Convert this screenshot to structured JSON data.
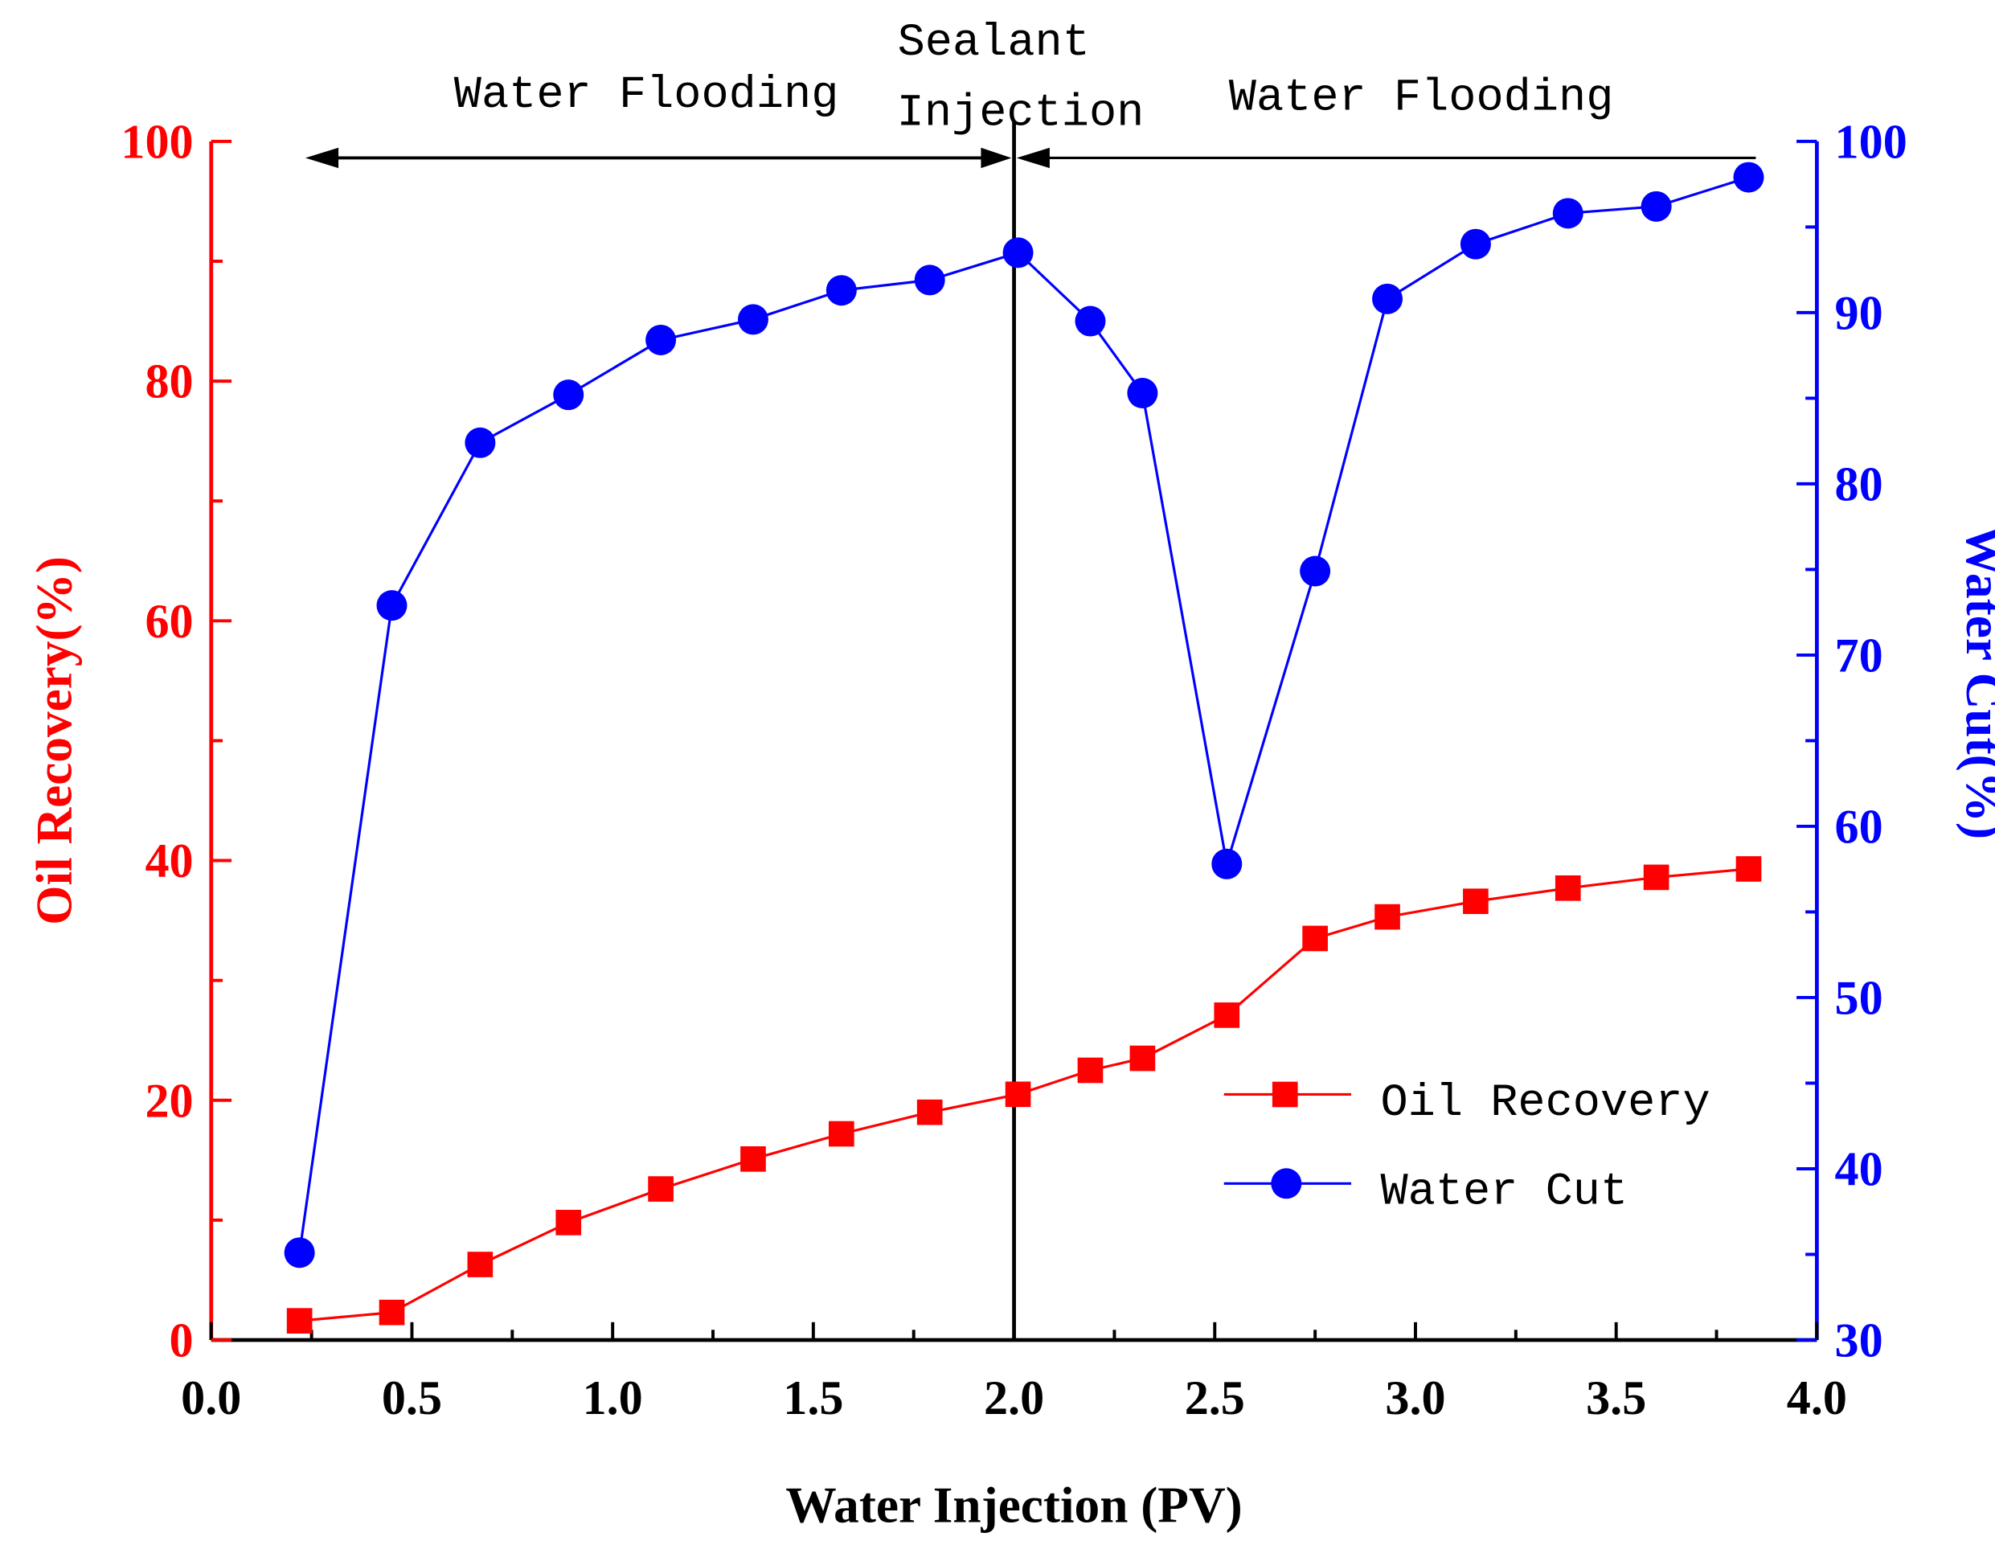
{
  "chart_data": {
    "type": "line",
    "title": "",
    "xlabel": "Water Injection (PV)",
    "ylabel_left": "Oil Recovery(%)",
    "ylabel_right": "Water Cut(%)",
    "xlim": [
      0.0,
      4.0
    ],
    "ylim_left": [
      0,
      100
    ],
    "ylim_right": [
      30,
      100
    ],
    "x_ticks": [
      "0.0",
      "0.5",
      "1.0",
      "1.5",
      "2.0",
      "2.5",
      "3.0",
      "3.5",
      "4.0"
    ],
    "y_left_ticks": [
      "0",
      "20",
      "40",
      "60",
      "80",
      "100"
    ],
    "y_right_ticks": [
      "30",
      "40",
      "50",
      "60",
      "70",
      "80",
      "90",
      "100"
    ],
    "grid": false,
    "legend_position": "lower-right",
    "colors": {
      "oil": "#ff0000",
      "water": "#0000ff",
      "axis": "#000000"
    },
    "x": [
      0.22,
      0.45,
      0.67,
      0.89,
      1.12,
      1.35,
      1.57,
      1.79,
      2.01,
      2.19,
      2.32,
      2.53,
      2.75,
      2.93,
      3.15,
      3.38,
      3.6,
      3.83
    ],
    "series": [
      {
        "name": "Oil Recovery",
        "axis": "left",
        "marker": "square",
        "values": [
          1.6,
          2.3,
          6.3,
          9.8,
          12.6,
          15.1,
          17.2,
          19.0,
          20.5,
          22.5,
          23.5,
          27.1,
          33.5,
          35.3,
          36.6,
          37.7,
          38.6,
          39.3
        ]
      },
      {
        "name": "Water Cut",
        "axis": "right",
        "marker": "circle",
        "values": [
          35.1,
          72.9,
          82.4,
          85.2,
          88.4,
          89.6,
          91.3,
          91.9,
          93.5,
          89.5,
          85.3,
          57.8,
          74.9,
          90.8,
          94.0,
          95.8,
          96.2,
          97.9
        ]
      }
    ],
    "annotations": {
      "stage1": "Water Flooding",
      "stage2_line1": "Sealant",
      "stage2_line2": "Injection",
      "stage3": "Water Flooding",
      "divider_x": 2.0
    }
  }
}
